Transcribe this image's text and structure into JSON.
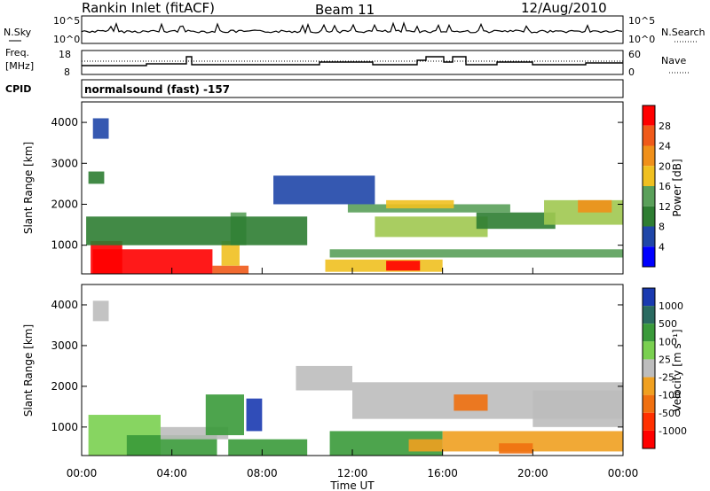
{
  "header": {
    "station": "Rankin Inlet (fitACF)",
    "beam": "Beam 11",
    "date": "12/Aug/2010"
  },
  "params_panel": {
    "nsky_label": "N.Sky",
    "nsearch_label": "N.Search",
    "left_top_tick": "10^5",
    "left_bottom_tick": "10^0",
    "right_top_tick": "10^5",
    "right_bottom_tick": "10^0",
    "freq_label": "Freq.",
    "freq_unit": "[MHz]",
    "freq_ticks": [
      "18",
      "8"
    ],
    "nave_label": "Nave",
    "nave_ticks": [
      "60",
      "0"
    ],
    "cpid_label": "CPID",
    "cpid_value": "normalsound (fast) -157"
  },
  "colors": {
    "power_scale": [
      "#0000ff",
      "#1f46a8",
      "#2e7d32",
      "#5aa05a",
      "#a0c850",
      "#f0c020",
      "#f0901a",
      "#f05a1a",
      "#ff0000"
    ],
    "velocity_scale": [
      "#1a3ab0",
      "#2a6a60",
      "#3a9a3a",
      "#7ad050",
      "#bdbdbd",
      "#bdbdbd",
      "#f0a020",
      "#f07010",
      "#ff3000",
      "#ff0000"
    ]
  },
  "chart_data": [
    {
      "type": "heatmap",
      "panel": "power",
      "ylabel": "Slant Range [km]",
      "yticks": [
        "1000",
        "2000",
        "3000",
        "4000"
      ],
      "ylim": [
        300,
        4500
      ],
      "xlim": [
        0,
        24
      ],
      "colorbar_label": "Power [dB]",
      "colorbar_ticks": [
        "4",
        "8",
        "12",
        "16",
        "20",
        "24",
        "28"
      ],
      "cells": [
        {
          "t0": 0.5,
          "t1": 5.8,
          "r0": 300,
          "r1": 900,
          "level": 8
        },
        {
          "t0": 0.4,
          "t1": 1.8,
          "r0": 300,
          "r1": 1100,
          "level": 8
        },
        {
          "t0": 5.8,
          "t1": 7.4,
          "r0": 300,
          "r1": 500,
          "level": 7
        },
        {
          "t0": 6.2,
          "t1": 7.0,
          "r0": 500,
          "r1": 1100,
          "level": 5
        },
        {
          "t0": 6.6,
          "t1": 7.3,
          "r0": 1000,
          "r1": 1800,
          "level": 3
        },
        {
          "t0": 0.2,
          "t1": 10.0,
          "r0": 1000,
          "r1": 1700,
          "level": 2
        },
        {
          "t0": 10.8,
          "t1": 16.0,
          "r0": 350,
          "r1": 650,
          "level": 5
        },
        {
          "t0": 13.5,
          "t1": 15.0,
          "r0": 380,
          "r1": 620,
          "level": 8
        },
        {
          "t0": 11.0,
          "t1": 24.0,
          "r0": 700,
          "r1": 900,
          "level": 3
        },
        {
          "t0": 13.0,
          "t1": 18.0,
          "r0": 1200,
          "r1": 1700,
          "level": 4
        },
        {
          "t0": 17.5,
          "t1": 21.0,
          "r0": 1400,
          "r1": 1800,
          "level": 2
        },
        {
          "t0": 11.8,
          "t1": 19.0,
          "r0": 1800,
          "r1": 2000,
          "level": 3
        },
        {
          "t0": 20.5,
          "t1": 24.0,
          "r0": 1500,
          "r1": 2100,
          "level": 4
        },
        {
          "t0": 22.0,
          "t1": 23.5,
          "r0": 1800,
          "r1": 2100,
          "level": 6
        },
        {
          "t0": 13.5,
          "t1": 16.5,
          "r0": 1900,
          "r1": 2100,
          "level": 5
        },
        {
          "t0": 8.5,
          "t1": 13.0,
          "r0": 2000,
          "r1": 2700,
          "level": 1
        },
        {
          "t0": 0.5,
          "t1": 1.2,
          "r0": 3600,
          "r1": 4100,
          "level": 1
        },
        {
          "t0": 0.3,
          "t1": 1.0,
          "r0": 2500,
          "r1": 2800,
          "level": 2
        }
      ]
    },
    {
      "type": "heatmap",
      "panel": "velocity",
      "ylabel": "Slant Range [km]",
      "yticks": [
        "1000",
        "2000",
        "3000",
        "4000"
      ],
      "ylim": [
        300,
        4500
      ],
      "xlim": [
        0,
        24
      ],
      "xticks": [
        "00:00",
        "04:00",
        "08:00",
        "12:00",
        "16:00",
        "20:00",
        "00:00"
      ],
      "xlabel": "Time UT",
      "colorbar_label": "Velocity [m s⁻¹]",
      "colorbar_ticks": [
        "1000",
        "500",
        "100",
        "25",
        "-25",
        "-100",
        "-500",
        "-1000"
      ],
      "cells": [
        {
          "t0": 0.3,
          "t1": 3.5,
          "r0": 300,
          "r1": 1300,
          "level": 3
        },
        {
          "t0": 2.0,
          "t1": 6.0,
          "r0": 300,
          "r1": 800,
          "level": 2
        },
        {
          "t0": 3.5,
          "t1": 6.5,
          "r0": 700,
          "r1": 1000,
          "level": 4
        },
        {
          "t0": 5.5,
          "t1": 7.2,
          "r0": 800,
          "r1": 1800,
          "level": 2
        },
        {
          "t0": 7.3,
          "t1": 8.0,
          "r0": 900,
          "r1": 1700,
          "level": 0
        },
        {
          "t0": 6.5,
          "t1": 10.0,
          "r0": 300,
          "r1": 700,
          "level": 2
        },
        {
          "t0": 11.0,
          "t1": 16.0,
          "r0": 300,
          "r1": 900,
          "level": 2
        },
        {
          "t0": 14.5,
          "t1": 16.0,
          "r0": 400,
          "r1": 700,
          "level": 6
        },
        {
          "t0": 16.0,
          "t1": 24.0,
          "r0": 400,
          "r1": 900,
          "level": 6
        },
        {
          "t0": 18.5,
          "t1": 20.0,
          "r0": 350,
          "r1": 600,
          "level": 7
        },
        {
          "t0": 12.0,
          "t1": 24.0,
          "r0": 1200,
          "r1": 2100,
          "level": 5
        },
        {
          "t0": 20.0,
          "t1": 24.0,
          "r0": 1000,
          "r1": 1900,
          "level": 4
        },
        {
          "t0": 16.5,
          "t1": 18.0,
          "r0": 1400,
          "r1": 1800,
          "level": 7
        },
        {
          "t0": 9.5,
          "t1": 12.0,
          "r0": 1900,
          "r1": 2500,
          "level": 4
        },
        {
          "t0": 0.5,
          "t1": 1.2,
          "r0": 3600,
          "r1": 4100,
          "level": 4
        }
      ]
    }
  ]
}
